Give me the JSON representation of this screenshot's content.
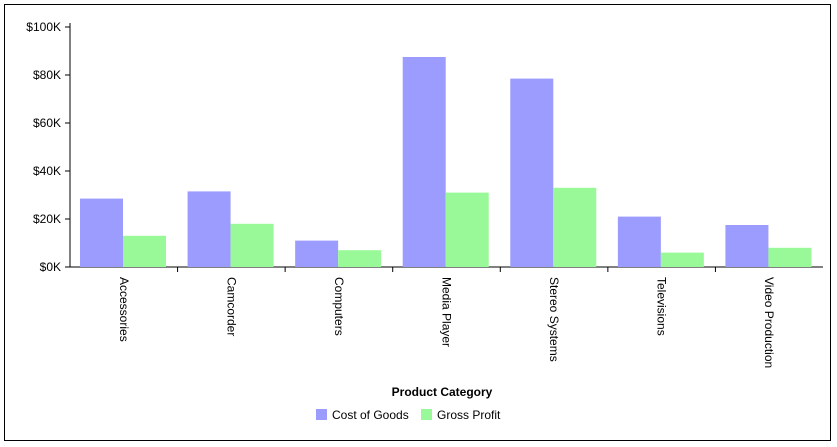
{
  "chart_data": {
    "type": "bar",
    "title": "",
    "xlabel": "Product Category",
    "ylabel": "",
    "categories": [
      "Accessories",
      "Camcorder",
      "Computers",
      "Media Player",
      "Stereo Systems",
      "Televisions",
      "Video Production"
    ],
    "series": [
      {
        "name": "Cost of Goods",
        "color": "#9c9cff",
        "values": [
          28500,
          31500,
          11000,
          87500,
          78500,
          21000,
          17500
        ]
      },
      {
        "name": "Gross Profit",
        "color": "#99f999",
        "values": [
          13000,
          18000,
          7000,
          31000,
          33000,
          6000,
          8000
        ]
      }
    ],
    "ylim": [
      0,
      100000
    ],
    "yticks": [
      0,
      20000,
      40000,
      60000,
      80000,
      100000
    ],
    "ytick_labels": [
      "$0K",
      "$20K",
      "$40K",
      "$60K",
      "$80K",
      "$100K"
    ],
    "grid": false,
    "legend_position": "bottom-center"
  }
}
